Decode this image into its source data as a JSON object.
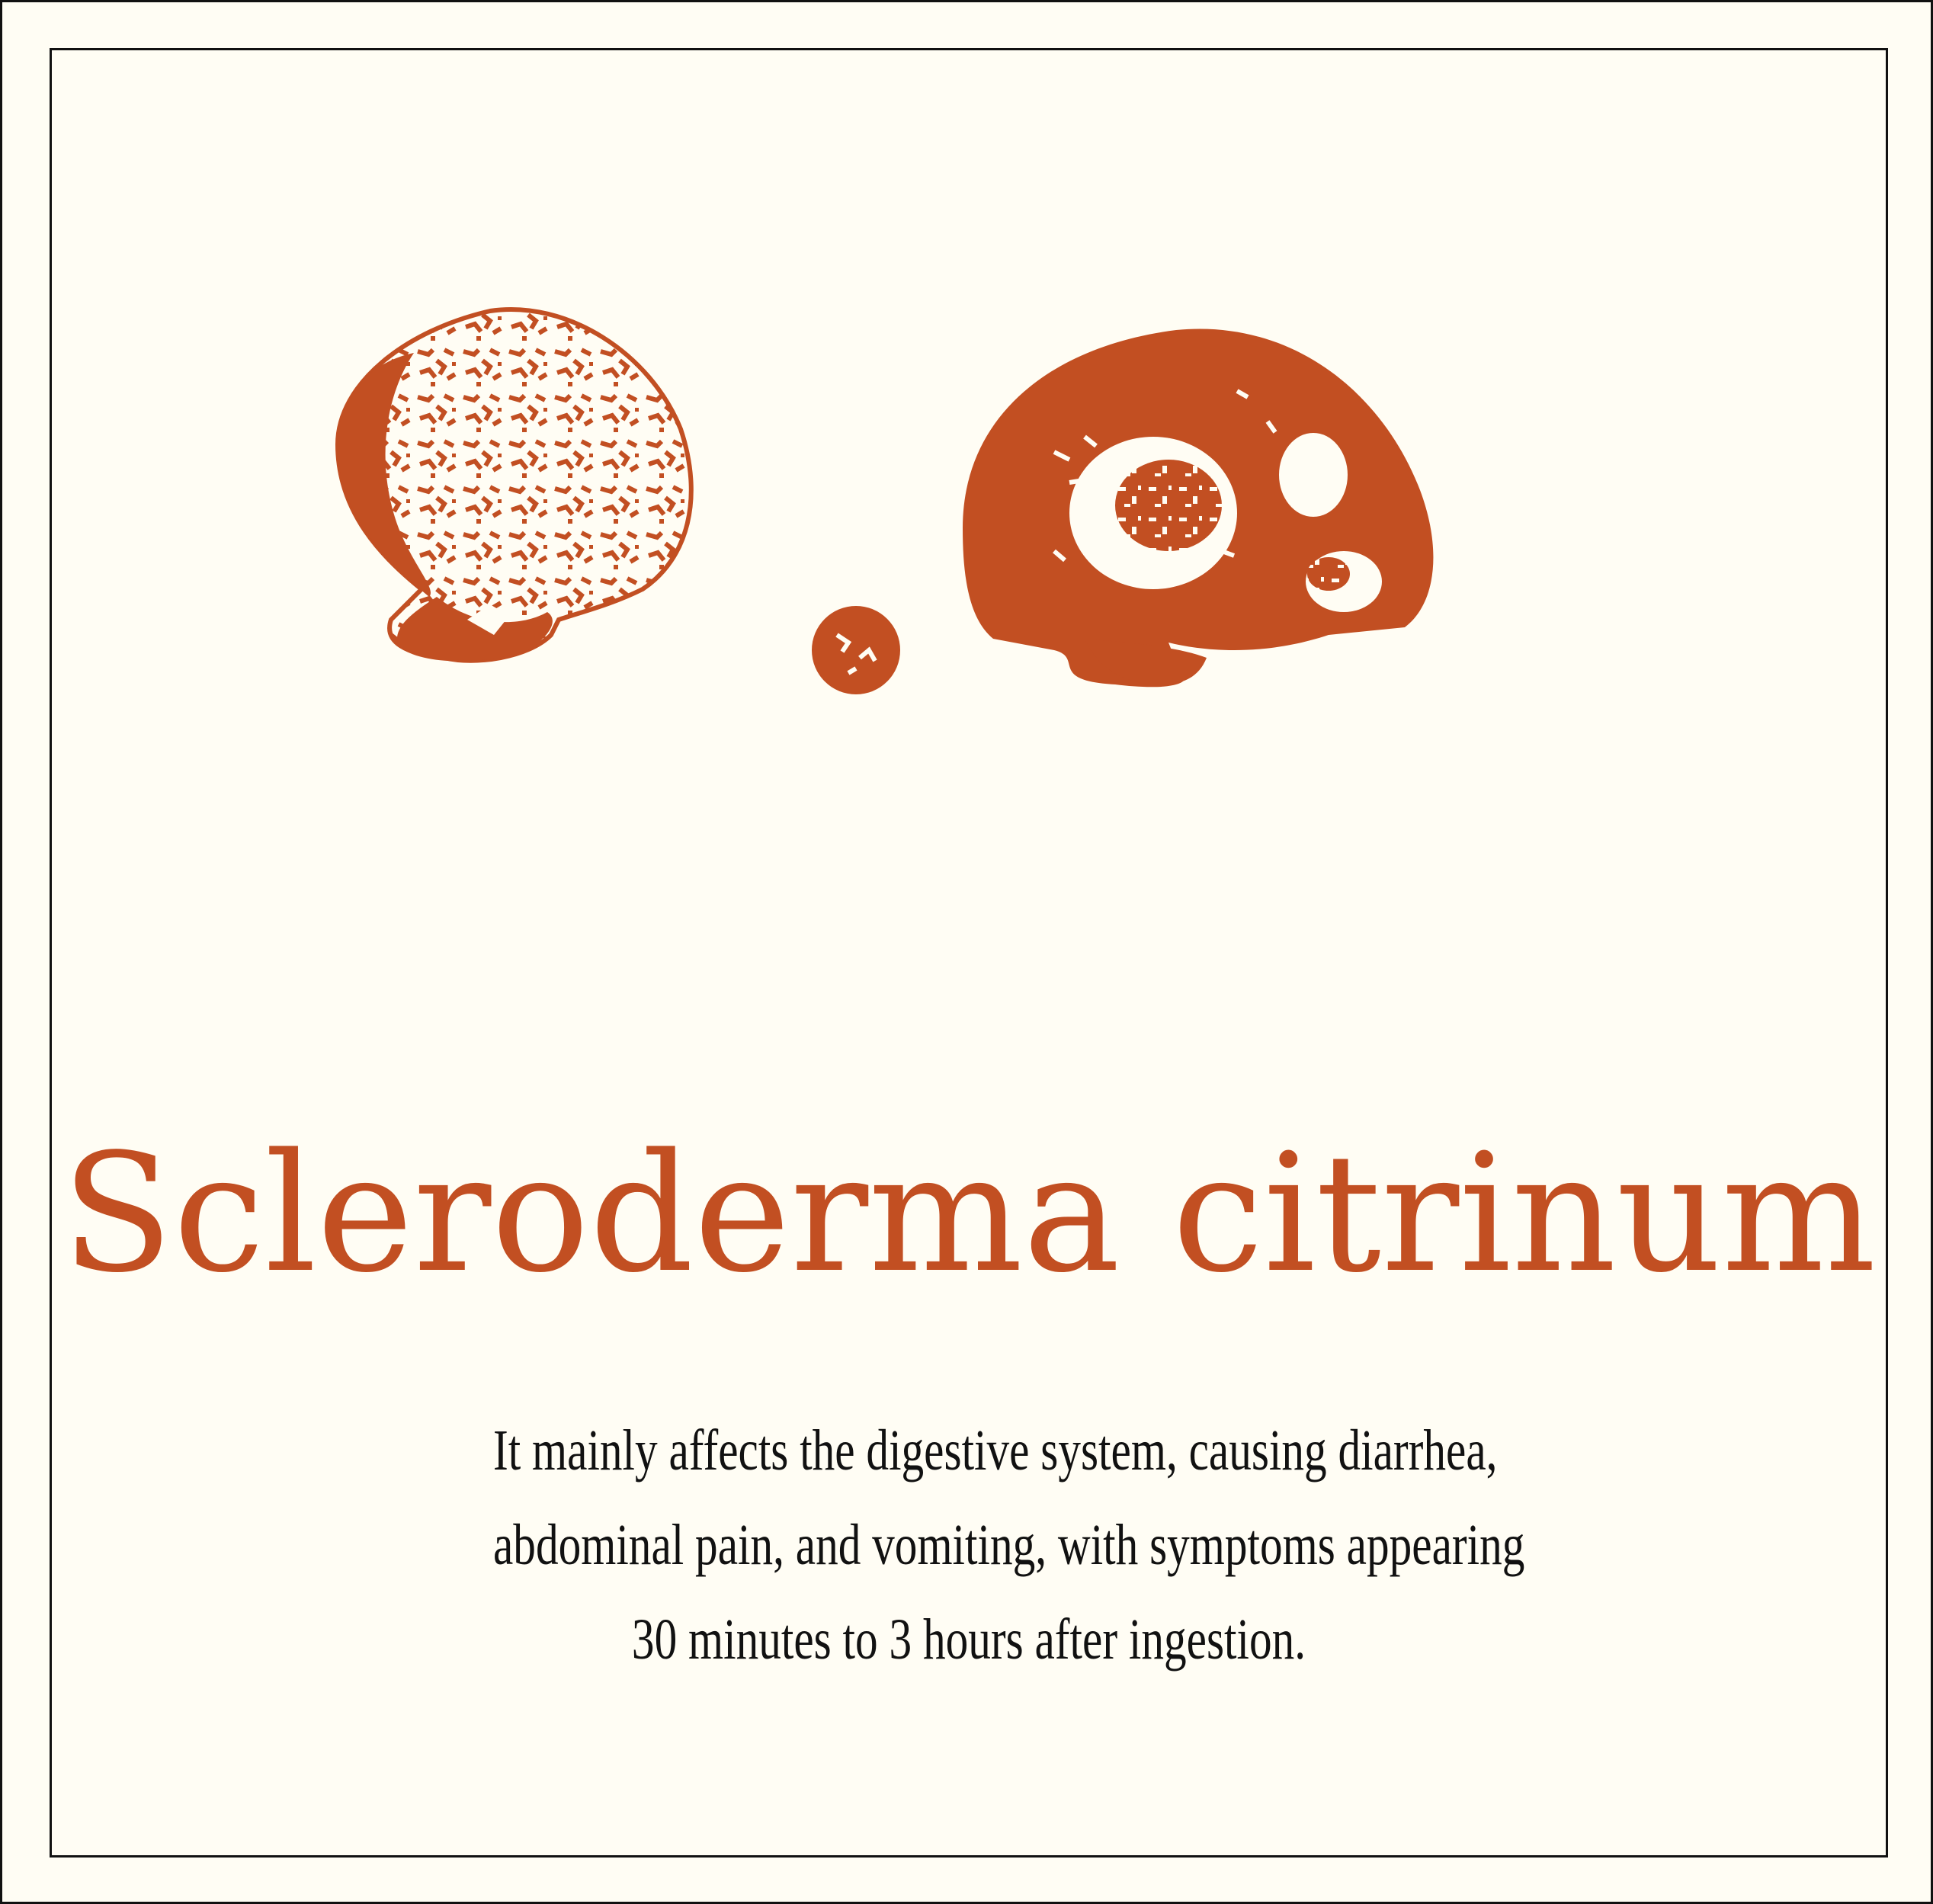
{
  "colors": {
    "background": "#fffdf4",
    "accent": "#c24f22",
    "text": "#111111",
    "frame": "#111111"
  },
  "illustration": {
    "icon": "mushroom-illustration-icon"
  },
  "title": "Scleroderma citrinum",
  "description": {
    "line1": "It mainly affects the digestive system, causing diarrhea,",
    "line2": "abdominal pain, and vomiting, with symptoms appearing",
    "line3": "30 minutes to 3 hours after ingestion."
  }
}
